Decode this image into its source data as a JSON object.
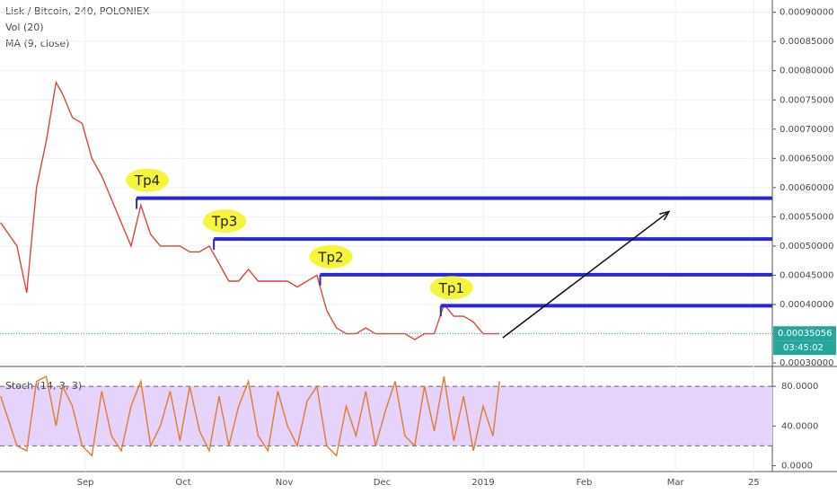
{
  "chart_data": [
    {
      "type": "line",
      "title": "Lisk / Bitcoin, 240, POLONIEX",
      "legend": [
        "Vol (20)",
        "MA (9, close)"
      ],
      "x": [
        5,
        10,
        13,
        16,
        19,
        22,
        24,
        27,
        30,
        33,
        36,
        39,
        42,
        45,
        48,
        51,
        54,
        57,
        60,
        63,
        66,
        69,
        72,
        75,
        78,
        81,
        84,
        87,
        90,
        93,
        96,
        99,
        102,
        105,
        108,
        111,
        114,
        117,
        120,
        123,
        126,
        129,
        132,
        135,
        138,
        141,
        144,
        147,
        150,
        153,
        156,
        158
      ],
      "series": [
        {
          "name": "Lisk / Bitcoin",
          "color": "#e0443a",
          "values": [
            0.00054,
            0.0005,
            0.00042,
            0.0006,
            0.00068,
            0.00078,
            0.00076,
            0.00072,
            0.00071,
            0.00065,
            0.00062,
            0.00058,
            0.00054,
            0.0005,
            0.00057,
            0.00052,
            0.0005,
            0.0005,
            0.0005,
            0.00049,
            0.00049,
            0.0005,
            0.00047,
            0.00044,
            0.00044,
            0.00046,
            0.00044,
            0.00044,
            0.00044,
            0.00044,
            0.00043,
            0.00044,
            0.00045,
            0.00039,
            0.00036,
            0.00035,
            0.00035,
            0.00036,
            0.00035,
            0.00035,
            0.00035,
            0.00035,
            0.00034,
            0.00035,
            0.00035,
            0.0004,
            0.00038,
            0.00038,
            0.00037,
            0.00035,
            0.00035,
            0.00035
          ]
        }
      ],
      "xlim": [
        4.8,
        241.7
      ],
      "xticks": [
        {
          "value": 31,
          "label": "Sep"
        },
        {
          "value": 61,
          "label": "Oct"
        },
        {
          "value": 92,
          "label": "Nov"
        },
        {
          "value": 122,
          "label": "Dec"
        },
        {
          "value": 153,
          "label": "2019"
        },
        {
          "value": 184,
          "label": "Feb"
        },
        {
          "value": 212,
          "label": "Mar"
        },
        {
          "value": 236,
          "label": "25"
        }
      ],
      "ylim": [
        0.000294,
        0.000921
      ],
      "yticks": [
        {
          "value": 0.0003,
          "label": "0.00030000"
        },
        {
          "value": 0.00035,
          "label": "0.00035000"
        },
        {
          "value": 0.0004,
          "label": "0.00040000"
        },
        {
          "value": 0.00045,
          "label": "0.00045000"
        },
        {
          "value": 0.0005,
          "label": "0.00050000"
        },
        {
          "value": 0.00055,
          "label": "0.00055000"
        },
        {
          "value": 0.0006,
          "label": "0.00060000"
        },
        {
          "value": 0.00065,
          "label": "0.00065000"
        },
        {
          "value": 0.0007,
          "label": "0.00070000"
        },
        {
          "value": 0.00075,
          "label": "0.00075000"
        },
        {
          "value": 0.0008,
          "label": "0.00080000"
        },
        {
          "value": 0.00085,
          "label": "0.00085000"
        },
        {
          "value": 0.0009,
          "label": "0.00090000"
        }
      ],
      "last_price": {
        "value": 0.00035056,
        "label": "0.00035056"
      },
      "countdown": "03:45:02",
      "levels": [
        {
          "label": "Tp4",
          "value": 0.000582,
          "start": 46.7
        },
        {
          "label": "Tp3",
          "value": 0.000512,
          "start": 70.4
        },
        {
          "label": "Tp2",
          "value": 0.000451,
          "start": 103
        },
        {
          "label": "Tp1",
          "value": 0.000398,
          "start": 140
        }
      ],
      "arrow": {
        "x": [
          159,
          210
        ],
        "y": [
          0.000343,
          0.000559
        ]
      }
    },
    {
      "type": "line",
      "title": "Stoch (14, 3, 3)",
      "x": [
        5,
        10,
        13,
        16,
        19,
        22,
        24,
        27,
        30,
        33,
        36,
        39,
        42,
        45,
        48,
        51,
        54,
        57,
        60,
        63,
        66,
        69,
        72,
        75,
        78,
        81,
        84,
        87,
        90,
        93,
        96,
        99,
        102,
        105,
        108,
        111,
        114,
        117,
        120,
        123,
        126,
        129,
        132,
        135,
        138,
        141,
        144,
        147,
        150,
        153,
        156,
        158
      ],
      "series": [
        {
          "name": "Stoch",
          "color": "#e07a30",
          "values": [
            70,
            20,
            15,
            85,
            90,
            40,
            80,
            60,
            20,
            10,
            75,
            30,
            15,
            60,
            85,
            20,
            40,
            75,
            25,
            80,
            35,
            15,
            70,
            20,
            60,
            85,
            30,
            15,
            75,
            40,
            20,
            65,
            80,
            20,
            10,
            60,
            30,
            75,
            20,
            55,
            85,
            30,
            20,
            80,
            35,
            90,
            25,
            70,
            15,
            60,
            30,
            85
          ]
        }
      ],
      "ylim": [
        -5,
        100
      ],
      "yticks": [
        {
          "value": 0,
          "label": "0.0000"
        },
        {
          "value": 40,
          "label": "40.0000"
        },
        {
          "value": 80,
          "label": "80.0000"
        }
      ],
      "band": [
        20,
        80
      ]
    }
  ]
}
